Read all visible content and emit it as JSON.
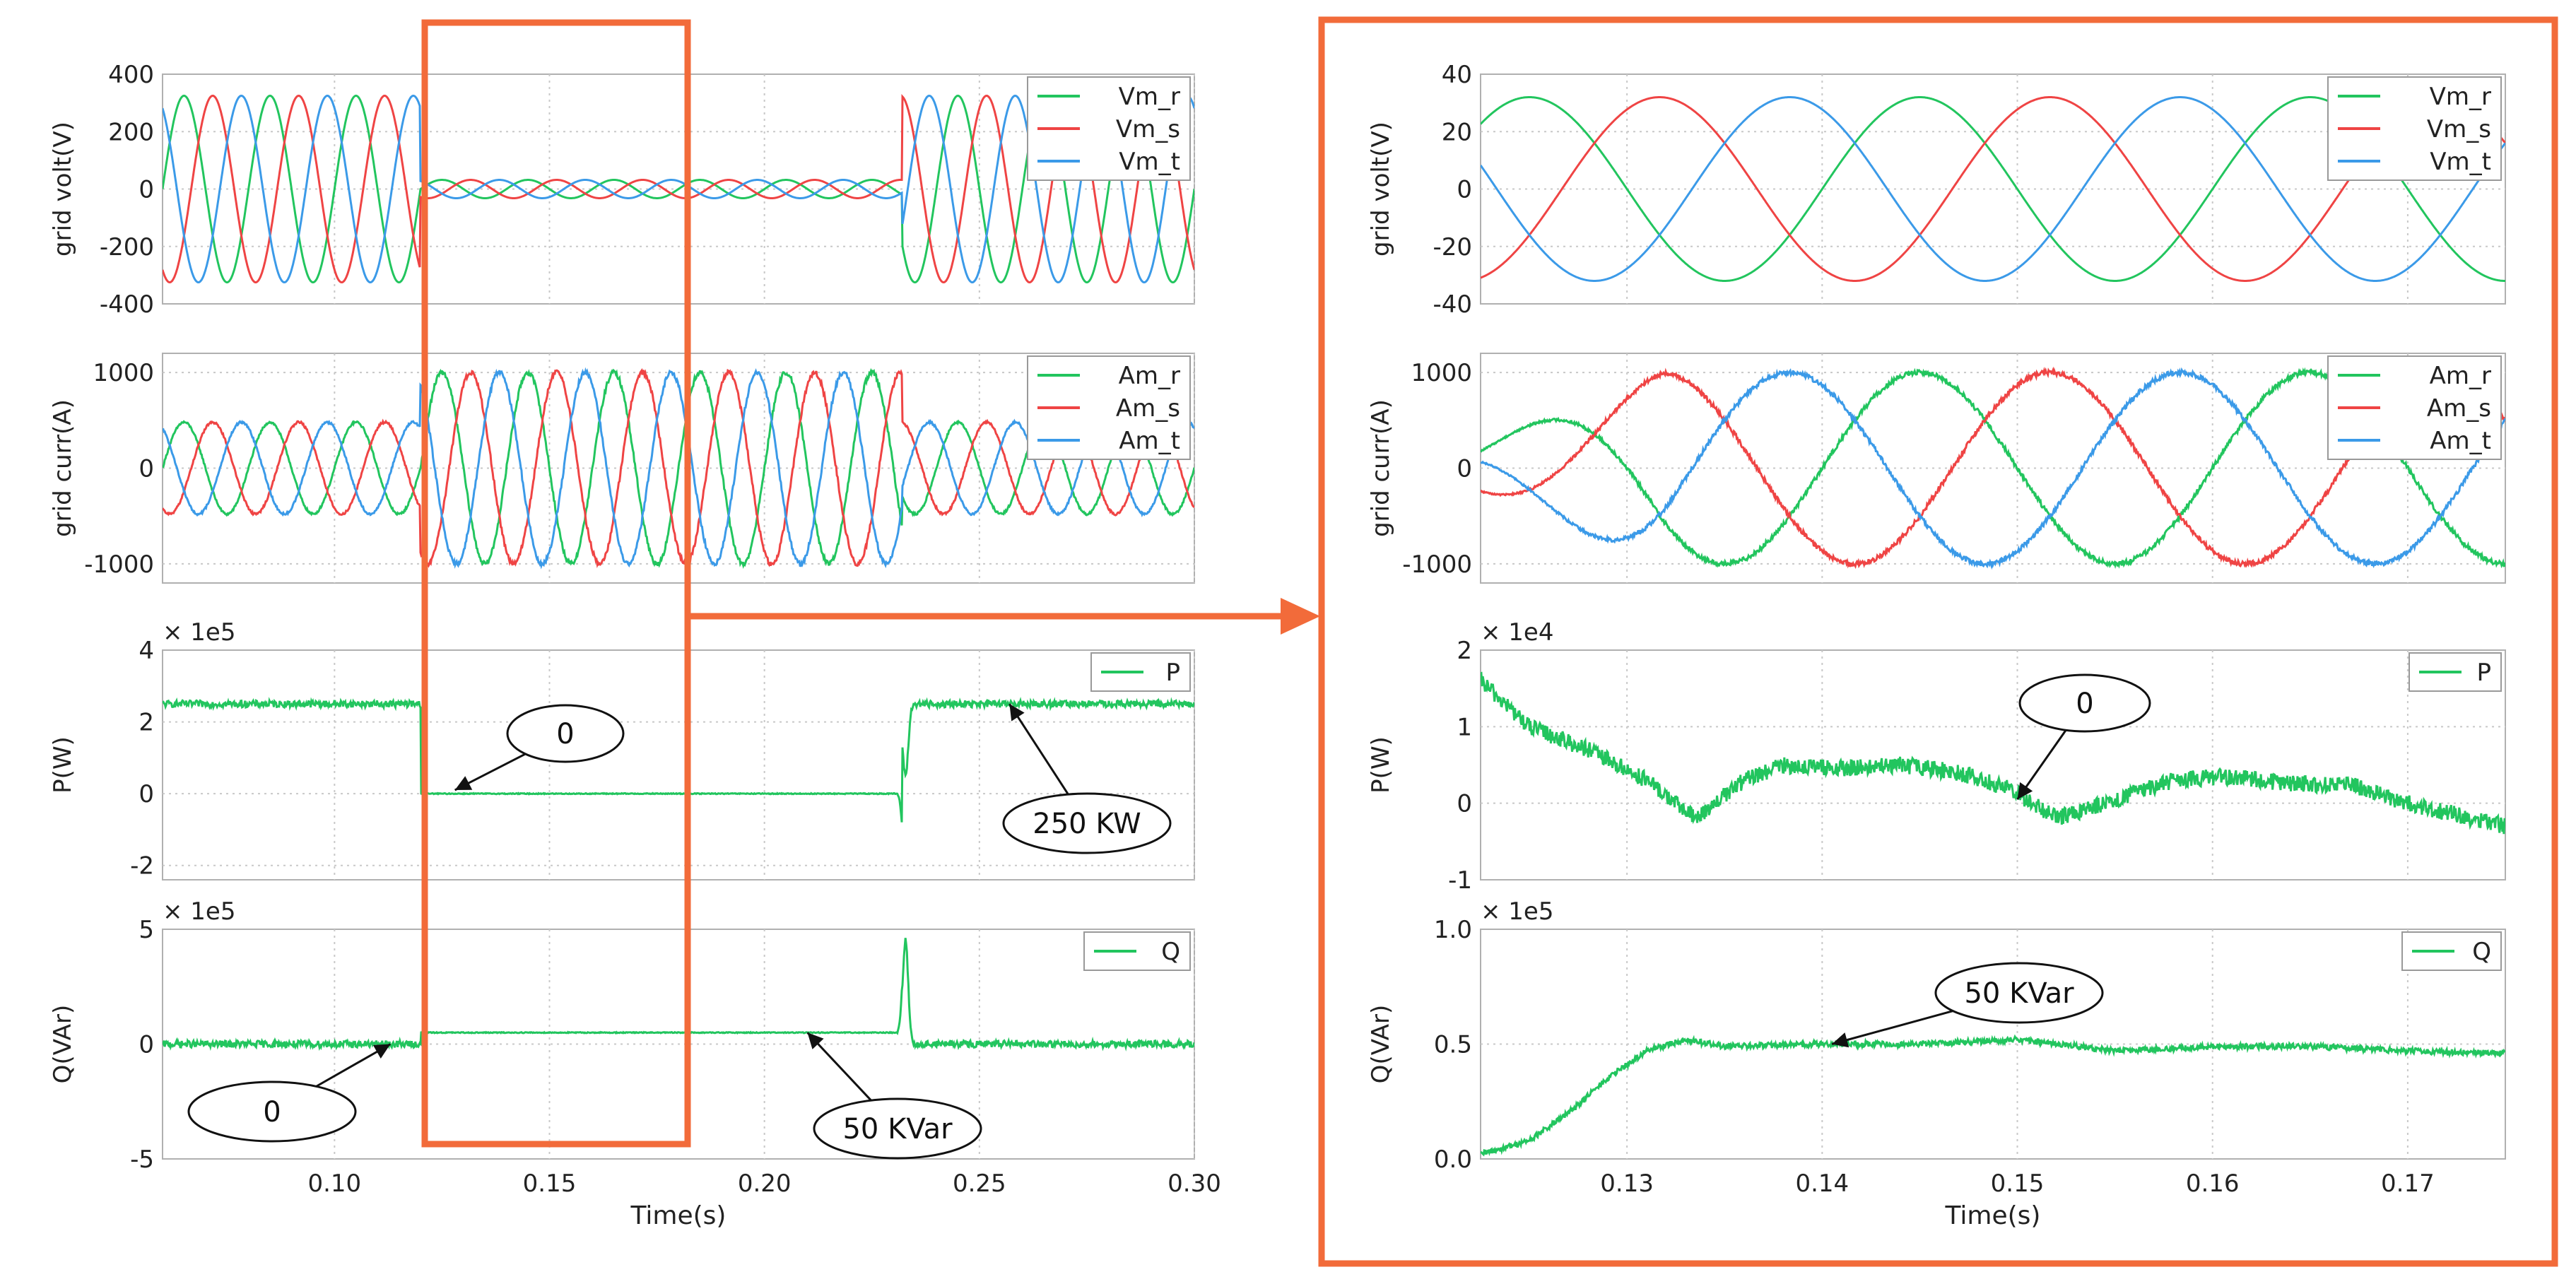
{
  "chart_data": [
    {
      "id": "L1",
      "panel": "left",
      "type": "line",
      "ylabel": "grid volt(V)",
      "xlim": [
        0.06,
        0.3
      ],
      "ylim": [
        -400,
        400
      ],
      "yticks": [
        400,
        200,
        0,
        -200,
        -400
      ],
      "series": [
        {
          "name": "Vm_r",
          "color": "#22c55e"
        },
        {
          "name": "Vm_s",
          "color": "#ef4444"
        },
        {
          "name": "Vm_t",
          "color": "#3b9ae8"
        }
      ],
      "frequency_hz": 50,
      "segments": [
        {
          "x_start": 0.06,
          "x_end": 0.12,
          "amplitude": 325
        },
        {
          "x_start": 0.12,
          "x_end": 0.232,
          "amplitude": 32
        },
        {
          "x_start": 0.232,
          "x_end": 0.3,
          "amplitude": 325
        }
      ]
    },
    {
      "id": "L2",
      "panel": "left",
      "type": "line",
      "ylabel": "grid curr(A)",
      "xlim": [
        0.06,
        0.3
      ],
      "ylim": [
        -1200,
        1200
      ],
      "yticks": [
        1000,
        0,
        -1000
      ],
      "series": [
        {
          "name": "Am_r",
          "color": "#22c55e"
        },
        {
          "name": "Am_s",
          "color": "#ef4444"
        },
        {
          "name": "Am_t",
          "color": "#3b9ae8"
        }
      ],
      "frequency_hz": 50,
      "segments": [
        {
          "x_start": 0.06,
          "x_end": 0.12,
          "amplitude": 480
        },
        {
          "x_start": 0.12,
          "x_end": 0.232,
          "amplitude": 1000
        },
        {
          "x_start": 0.232,
          "x_end": 0.3,
          "amplitude": 480
        }
      ]
    },
    {
      "id": "L3",
      "panel": "left",
      "type": "line",
      "ylabel": "P(W)",
      "multiplier": "× 1e5",
      "xlim": [
        0.06,
        0.3
      ],
      "ylim": [
        -2.4,
        4
      ],
      "yticks": [
        4,
        2,
        0,
        -2
      ],
      "series": [
        {
          "name": "P",
          "color": "#22c55e"
        }
      ],
      "levels": [
        {
          "x_start": 0.06,
          "x_end": 0.12,
          "value": 2.5
        },
        {
          "x_start": 0.12,
          "x_end": 0.232,
          "value": 0.0
        },
        {
          "x_start": 0.232,
          "x_end": 0.3,
          "value": 2.5
        }
      ],
      "annotations": [
        {
          "text": "0",
          "x": 0.128,
          "y": 0.1
        },
        {
          "text": "250 KW",
          "x": 0.257,
          "y": 2.5
        }
      ]
    },
    {
      "id": "L4",
      "panel": "left",
      "type": "line",
      "ylabel": "Q(VAr)",
      "multiplier": "× 1e5",
      "xlim": [
        0.06,
        0.3
      ],
      "ylim": [
        -5,
        5
      ],
      "yticks": [
        5,
        0,
        -5
      ],
      "series": [
        {
          "name": "Q",
          "color": "#22c55e"
        }
      ],
      "levels": [
        {
          "x_start": 0.06,
          "x_end": 0.12,
          "value": 0.0
        },
        {
          "x_start": 0.12,
          "x_end": 0.232,
          "value": 0.5
        },
        {
          "x_start": 0.232,
          "x_end": 0.3,
          "value": 0.0
        }
      ],
      "xticks": [
        "0.10",
        "0.15",
        "0.20",
        "0.25",
        "0.30"
      ],
      "xtick_values": [
        0.1,
        0.15,
        0.2,
        0.25,
        0.3
      ],
      "xlabel": "Time(s)",
      "annotations": [
        {
          "text": "0",
          "x": 0.113,
          "y": 0.0
        },
        {
          "text": "50 KVar",
          "x": 0.21,
          "y": 0.5
        }
      ]
    },
    {
      "id": "R1",
      "panel": "right",
      "type": "line",
      "ylabel": "grid volt(V)",
      "xlim": [
        0.1225,
        0.175
      ],
      "ylim": [
        -40,
        40
      ],
      "yticks": [
        40,
        20,
        0,
        -20,
        -40
      ],
      "series": [
        {
          "name": "Vm_r",
          "color": "#22c55e"
        },
        {
          "name": "Vm_s",
          "color": "#ef4444"
        },
        {
          "name": "Vm_t",
          "color": "#3b9ae8"
        }
      ],
      "frequency_hz": 50,
      "amplitude": 32
    },
    {
      "id": "R2",
      "panel": "right",
      "type": "line",
      "ylabel": "grid curr(A)",
      "xlim": [
        0.1225,
        0.175
      ],
      "ylim": [
        -1200,
        1200
      ],
      "yticks": [
        1000,
        0,
        -1000
      ],
      "series": [
        {
          "name": "Am_r",
          "color": "#22c55e"
        },
        {
          "name": "Am_s",
          "color": "#ef4444"
        },
        {
          "name": "Am_t",
          "color": "#3b9ae8"
        }
      ],
      "frequency_hz": 50,
      "amplitude": 1000,
      "ramp_until": 0.132
    },
    {
      "id": "R3",
      "panel": "right",
      "type": "line",
      "ylabel": "P(W)",
      "multiplier": "× 1e4",
      "xlim": [
        0.1225,
        0.175
      ],
      "ylim": [
        -1,
        2
      ],
      "yticks": [
        2,
        1,
        0,
        -1
      ],
      "series": [
        {
          "name": "P",
          "color": "#22c55e"
        }
      ],
      "points": [
        [
          0.1225,
          1.6
        ],
        [
          0.125,
          1.0
        ],
        [
          0.128,
          0.7
        ],
        [
          0.131,
          0.3
        ],
        [
          0.1335,
          -0.2
        ],
        [
          0.136,
          0.3
        ],
        [
          0.138,
          0.5
        ],
        [
          0.141,
          0.45
        ],
        [
          0.144,
          0.5
        ],
        [
          0.147,
          0.4
        ],
        [
          0.1495,
          0.2
        ],
        [
          0.152,
          -0.2
        ],
        [
          0.155,
          0.05
        ],
        [
          0.158,
          0.3
        ],
        [
          0.161,
          0.35
        ],
        [
          0.164,
          0.25
        ],
        [
          0.167,
          0.25
        ],
        [
          0.17,
          0.0
        ],
        [
          0.175,
          -0.3
        ]
      ],
      "annotations": [
        {
          "text": "0",
          "x": 0.15,
          "y": 0.05
        }
      ]
    },
    {
      "id": "R4",
      "panel": "right",
      "type": "line",
      "ylabel": "Q(VAr)",
      "multiplier": "× 1e5",
      "xlim": [
        0.1225,
        0.175
      ],
      "ylim": [
        0,
        1.0
      ],
      "yticks": [
        "1.0",
        "0.5",
        "0.0"
      ],
      "ytick_values": [
        1.0,
        0.5,
        0.0
      ],
      "series": [
        {
          "name": "Q",
          "color": "#22c55e"
        }
      ],
      "points": [
        [
          0.1225,
          0.02
        ],
        [
          0.125,
          0.08
        ],
        [
          0.127,
          0.2
        ],
        [
          0.129,
          0.35
        ],
        [
          0.131,
          0.47
        ],
        [
          0.133,
          0.52
        ],
        [
          0.135,
          0.49
        ],
        [
          0.14,
          0.5
        ],
        [
          0.145,
          0.5
        ],
        [
          0.15,
          0.52
        ],
        [
          0.155,
          0.47
        ],
        [
          0.16,
          0.49
        ],
        [
          0.165,
          0.49
        ],
        [
          0.17,
          0.47
        ],
        [
          0.175,
          0.46
        ]
      ],
      "xticks": [
        "0.13",
        "0.14",
        "0.15",
        "0.16",
        "0.17"
      ],
      "xtick_values": [
        0.13,
        0.14,
        0.15,
        0.16,
        0.17
      ],
      "xlabel": "Time(s)",
      "annotations": [
        {
          "text": "50 KVar",
          "x": 0.1405,
          "y": 0.5
        }
      ]
    }
  ],
  "colors": {
    "accent": "#f26b3a",
    "grid": "#c8c8c8",
    "frame": "#b0b0b0"
  }
}
